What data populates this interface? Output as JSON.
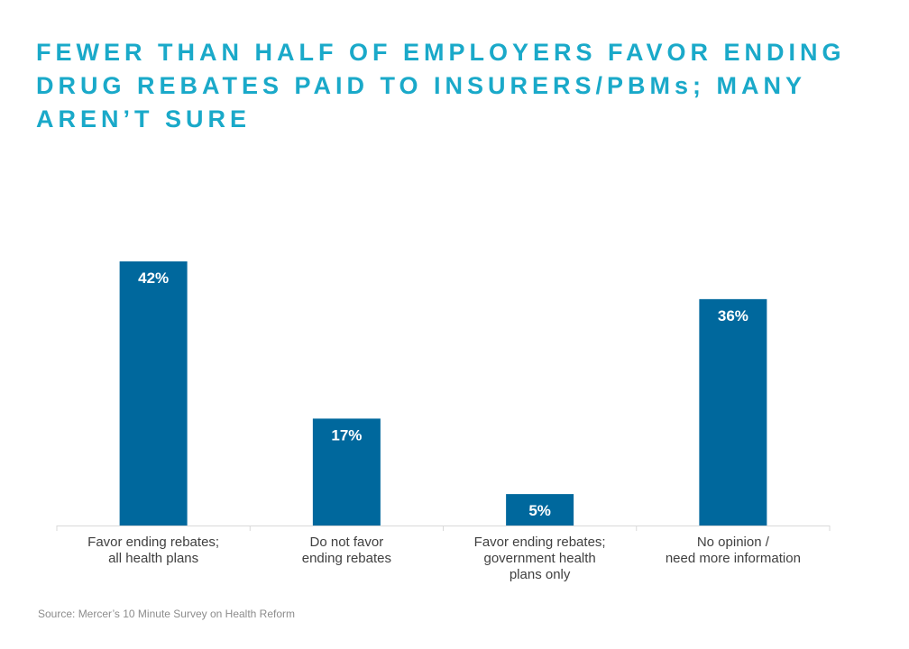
{
  "title": "FEWER THAN HALF OF EMPLOYERS FAVOR ENDING DRUG REBATES PAID TO INSURERS/PBMs; MANY AREN’T SURE",
  "source": "Source: Mercer’s 10 Minute Survey on Health Reform",
  "colors": {
    "title": "#1aa9c9",
    "bar": "#00689d",
    "bar_label": "#ffffff",
    "axis": "#d9d9d9",
    "category_text": "#404040",
    "source_text": "#8c8c8c"
  },
  "chart_data": {
    "type": "bar",
    "categories": [
      [
        "Favor ending rebates;",
        "all health plans"
      ],
      [
        "Do not favor",
        "ending rebates"
      ],
      [
        "Favor ending rebates;",
        "government health",
        "plans only"
      ],
      [
        "No opinion /",
        "need more information"
      ]
    ],
    "values": [
      42,
      17,
      5,
      36
    ],
    "value_labels": [
      "42%",
      "17%",
      "5%",
      "36%"
    ],
    "unit": "%",
    "ylim": [
      0,
      42
    ],
    "grid": false,
    "legend": "none"
  }
}
